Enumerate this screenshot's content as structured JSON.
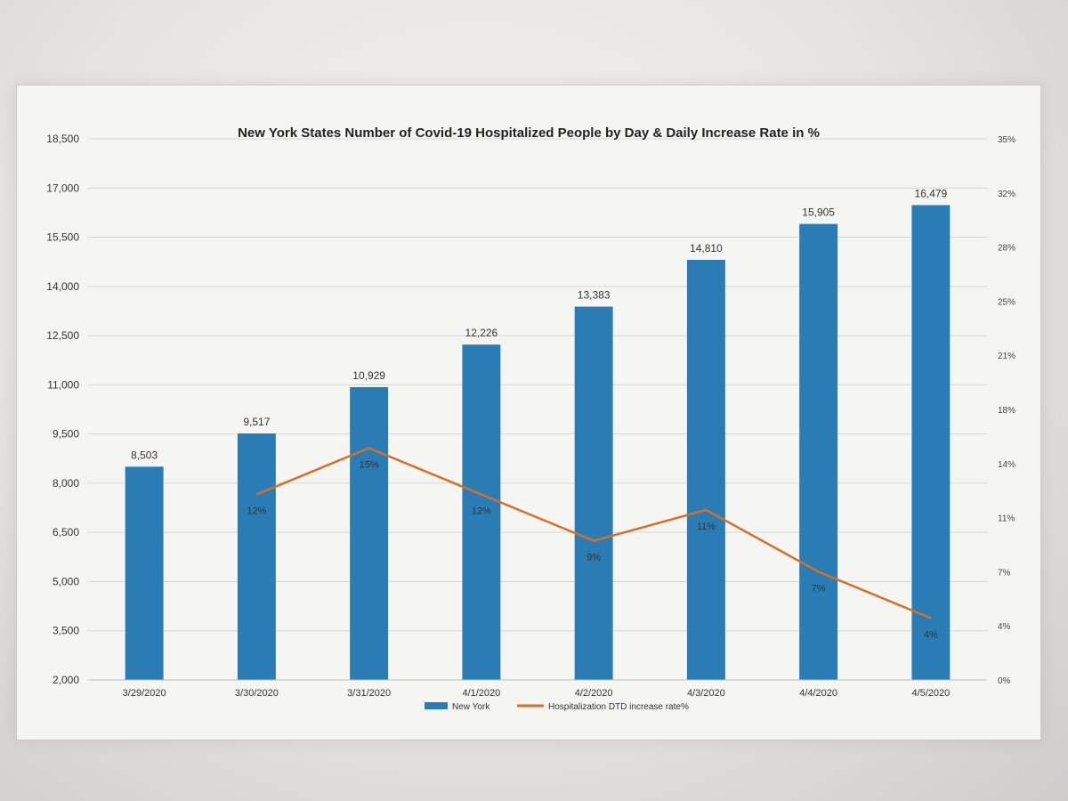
{
  "chart_data": {
    "type": "bar",
    "title": "New York States Number of Covid-19 Hospitalized People by Day & Daily Increase Rate in %",
    "categories": [
      "3/29/2020",
      "3/30/2020",
      "3/31/2020",
      "4/1/2020",
      "4/2/2020",
      "4/3/2020",
      "4/4/2020",
      "4/5/2020"
    ],
    "series": [
      {
        "name": "New York",
        "type": "bar",
        "axis": "left",
        "values": [
          8503,
          9517,
          10929,
          12226,
          13383,
          14810,
          15905,
          16479
        ],
        "labels": [
          "8,503",
          "9,517",
          "10,929",
          "12,226",
          "13,383",
          "14,810",
          "15,905",
          "16,479"
        ],
        "color": "#2a7db4"
      },
      {
        "name": "Hospitalization DTD increase rate%",
        "type": "line",
        "axis": "right",
        "values": [
          null,
          12,
          15,
          12,
          9,
          11,
          7,
          4
        ],
        "labels": [
          "",
          "12%",
          "15%",
          "12%",
          "9%",
          "11%",
          "7%",
          "4%"
        ],
        "color": "#d4702a"
      }
    ],
    "y_left": {
      "min": 2000,
      "max": 18500,
      "ticks": [
        2000,
        3500,
        5000,
        6500,
        8000,
        9500,
        11000,
        12500,
        14000,
        15500,
        17000,
        18500
      ],
      "tick_labels": [
        "2,000",
        "3,500",
        "5,000",
        "6,500",
        "8,000",
        "9,500",
        "11,000",
        "12,500",
        "14,000",
        "15,500",
        "17,000",
        "18,500"
      ]
    },
    "y_right": {
      "min": 0,
      "max": 35,
      "ticks": [
        0,
        3.5,
        7,
        10.5,
        14,
        17.5,
        21,
        24.5,
        28,
        31.5,
        35
      ],
      "tick_labels": [
        "0%",
        "4%",
        "7%",
        "11%",
        "14%",
        "18%",
        "21%",
        "25%",
        "28%",
        "32%",
        "35%"
      ]
    },
    "grid": true,
    "legend": "bottom"
  }
}
